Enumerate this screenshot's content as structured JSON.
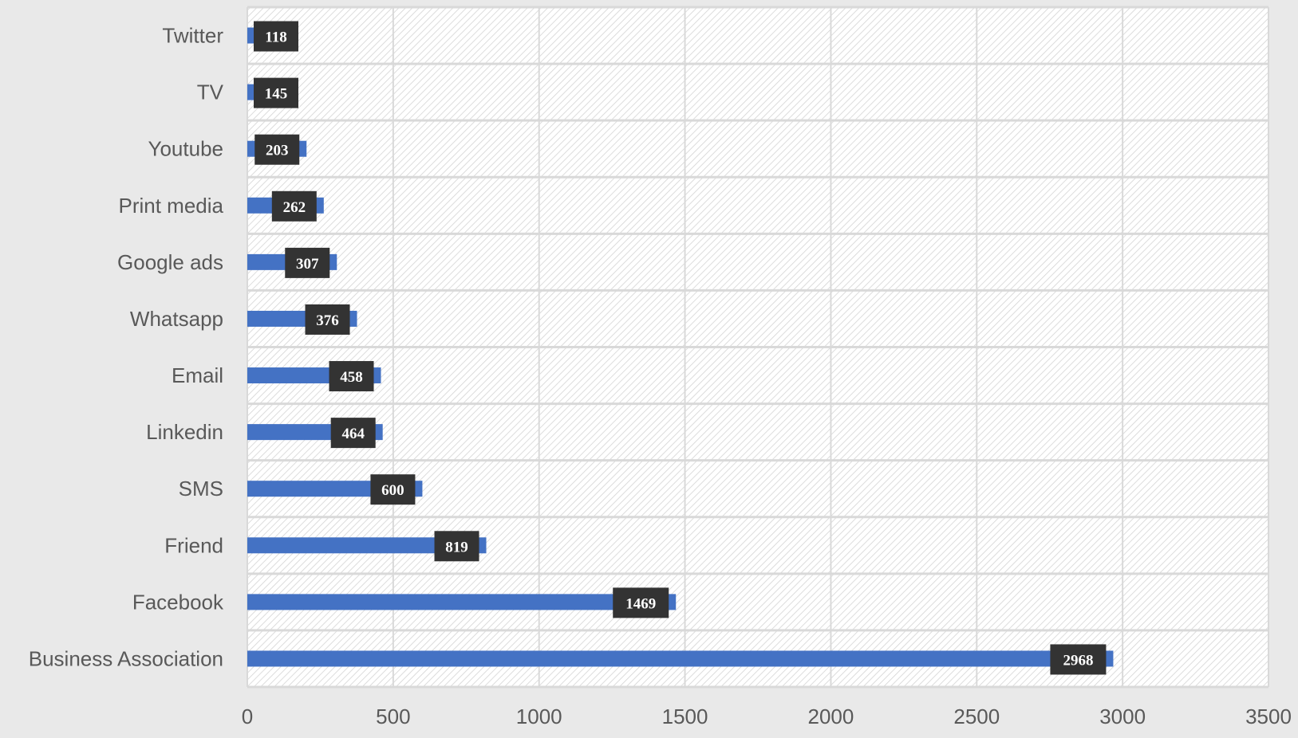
{
  "chart_data": {
    "type": "bar",
    "orientation": "horizontal",
    "categories": [
      "Twitter",
      "TV",
      "Youtube",
      "Print media",
      "Google ads",
      "Whatsapp",
      "Email",
      "Linkedin",
      "SMS",
      "Friend",
      "Facebook",
      "Business Association"
    ],
    "values": [
      118,
      145,
      203,
      262,
      307,
      376,
      458,
      464,
      600,
      819,
      1469,
      2968
    ],
    "title": "",
    "xlabel": "",
    "ylabel": "",
    "xlim": [
      0,
      3500
    ],
    "xticks": [
      "0",
      "500",
      "1000",
      "1500",
      "2000",
      "2500",
      "3000",
      "3500"
    ],
    "grid": true,
    "legend": "none",
    "colors": {
      "bar": "#4472c4",
      "label_box": "#333333",
      "label_text": "#ffffff",
      "grid": "#d9d9d9",
      "plot_bg": "#ffffff",
      "page_bg": "#e9e9e9",
      "axis_text": "#595959"
    }
  }
}
